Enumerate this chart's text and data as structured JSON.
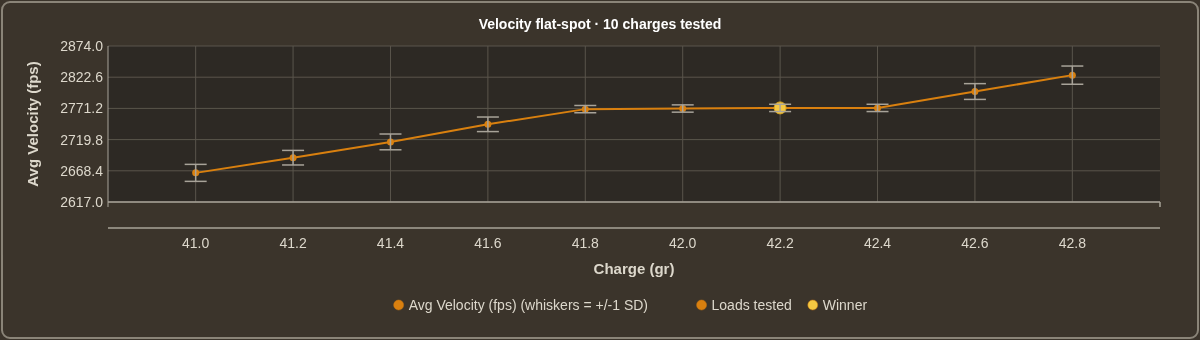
{
  "chart_data": {
    "type": "line",
    "title": "Velocity flat-spot · 10 charges tested",
    "xlabel": "Charge (gr)",
    "ylabel": "Avg Velocity (fps)",
    "x": [
      41.0,
      41.2,
      41.4,
      41.6,
      41.8,
      42.0,
      42.2,
      42.4,
      42.6,
      42.8
    ],
    "series": [
      {
        "name": "Avg Velocity (fps) (whiskers = +/-1 SD)",
        "color": "#d9800f",
        "values": [
          2665,
          2690,
          2716,
          2745,
          2770,
          2771,
          2772,
          2772,
          2799,
          2826
        ],
        "errors": [
          14,
          12,
          13,
          12,
          6,
          6,
          6,
          6,
          13,
          15
        ]
      },
      {
        "name": "Loads tested",
        "type": "scatter",
        "color": "#d9800f",
        "values": [
          2665,
          2690,
          2716,
          2745,
          2770,
          2771,
          null,
          2772,
          2799,
          2826
        ]
      },
      {
        "name": "Winner",
        "type": "scatter",
        "color": "#f5c842",
        "x": [
          42.2
        ],
        "values": [
          2772
        ]
      }
    ],
    "xlim": [
      40.82,
      42.98
    ],
    "xticks": [
      {
        "value": 41.0,
        "label": "41.0"
      },
      {
        "value": 41.2,
        "label": "41.2"
      },
      {
        "value": 41.4,
        "label": "41.4"
      },
      {
        "value": 41.6,
        "label": "41.6"
      },
      {
        "value": 41.8,
        "label": "41.8"
      },
      {
        "value": 42.0,
        "label": "42.0"
      },
      {
        "value": 42.2,
        "label": "42.2"
      },
      {
        "value": 42.4,
        "label": "42.4"
      },
      {
        "value": 42.6,
        "label": "42.6"
      },
      {
        "value": 42.8,
        "label": "42.8"
      }
    ],
    "ylim": [
      2617,
      2874
    ],
    "yticks": [
      {
        "value": 2617,
        "label": "2617.0"
      },
      {
        "value": 2668.4,
        "label": "2668.4"
      },
      {
        "value": 2719.8,
        "label": "2719.8"
      },
      {
        "value": 2771.2,
        "label": "2771.2"
      },
      {
        "value": 2822.6,
        "label": "2822.6"
      },
      {
        "value": 2874,
        "label": "2874.0"
      }
    ],
    "grid": true,
    "legend": "bottom",
    "line_style": "solid"
  }
}
